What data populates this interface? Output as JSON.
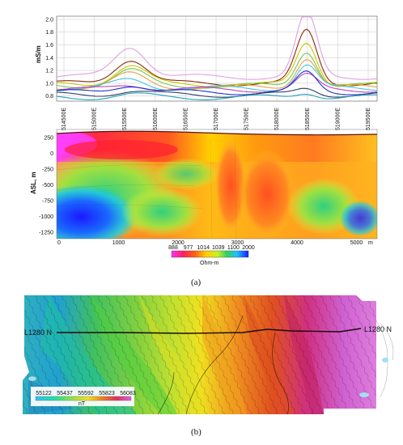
{
  "panel_a": {
    "profile": {
      "y_label": "mS/m",
      "y_ticks": [
        "2.0",
        "1.8",
        "1.6",
        "1.4",
        "1.2",
        "1.0",
        "0.8"
      ],
      "easting_ticks": [
        "514500E",
        "515000E",
        "515500E",
        "516000E",
        "516500E",
        "517000E",
        "517500E",
        "518000E",
        "518500E",
        "519000E",
        "519500E"
      ],
      "colors": [
        "#e0a0e0",
        "#8b2a0a",
        "#c8c800",
        "#78c850",
        "#e8a040",
        "#40c8e0",
        "#c040c0",
        "#2030c8",
        "#304060",
        "#20a0c0"
      ]
    },
    "section": {
      "y_label": "ASL, m",
      "y_ticks": [
        "250",
        "0",
        "-250",
        "-500",
        "-750",
        "-1000",
        "-1250"
      ],
      "x_ticks": [
        "0",
        "1000",
        "2000",
        "3000",
        "4000",
        "5000"
      ],
      "x_unit": "m"
    },
    "colorbar": {
      "ticks": [
        "888",
        "977",
        "1014",
        "1039",
        "1100",
        "2000"
      ],
      "unit": "Ohm-m"
    },
    "label": "(a)"
  },
  "panel_b": {
    "line_left": "L1280 N",
    "line_right": "L1280 N",
    "colorbar": {
      "ticks": [
        "55122",
        "55437",
        "55592",
        "55823",
        "56083"
      ],
      "unit": "nT"
    },
    "label": "(b)"
  }
}
